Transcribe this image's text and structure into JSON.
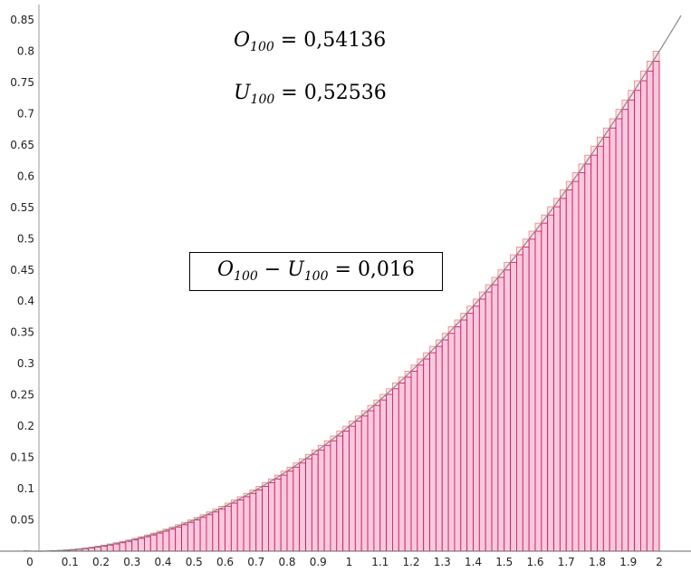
{
  "chart_data": {
    "type": "bar",
    "subtype": "riemann-sum",
    "function": "x^2/5",
    "n": 100,
    "xlim": [
      0,
      2
    ],
    "ylim": [
      0,
      0.85
    ],
    "xticks": [
      "0",
      "0.1",
      "0.2",
      "0.3",
      "0.4",
      "0.5",
      "0.6",
      "0.7",
      "0.8",
      "0.9",
      "1",
      "1.1",
      "1.2",
      "1.3",
      "1.4",
      "1.5",
      "1.6",
      "1.7",
      "1.8",
      "1.9",
      "2"
    ],
    "yticks": [
      "0.05",
      "0.1",
      "0.15",
      "0.2",
      "0.25",
      "0.3",
      "0.35",
      "0.4",
      "0.45",
      "0.5",
      "0.55",
      "0.6",
      "0.65",
      "0.7",
      "0.75",
      "0.8",
      "0.85"
    ],
    "colors": {
      "upper_bar_stroke": "#f08080",
      "upper_bar_fill": "#fde2ea",
      "lower_bar_stroke": "#d81b60",
      "lower_bar_fill": "#f6c9df",
      "curve": "#888888"
    }
  },
  "annotations": {
    "upper_sum": {
      "symbol": "O",
      "sub": "100",
      "eq": "=",
      "value": "0,54136"
    },
    "lower_sum": {
      "symbol": "U",
      "sub": "100",
      "eq": "=",
      "value": "0,52536"
    },
    "difference": {
      "a": "O",
      "a_sub": "100",
      "minus": "−",
      "b": "U",
      "b_sub": "100",
      "eq": "=",
      "value": "0,016"
    }
  }
}
